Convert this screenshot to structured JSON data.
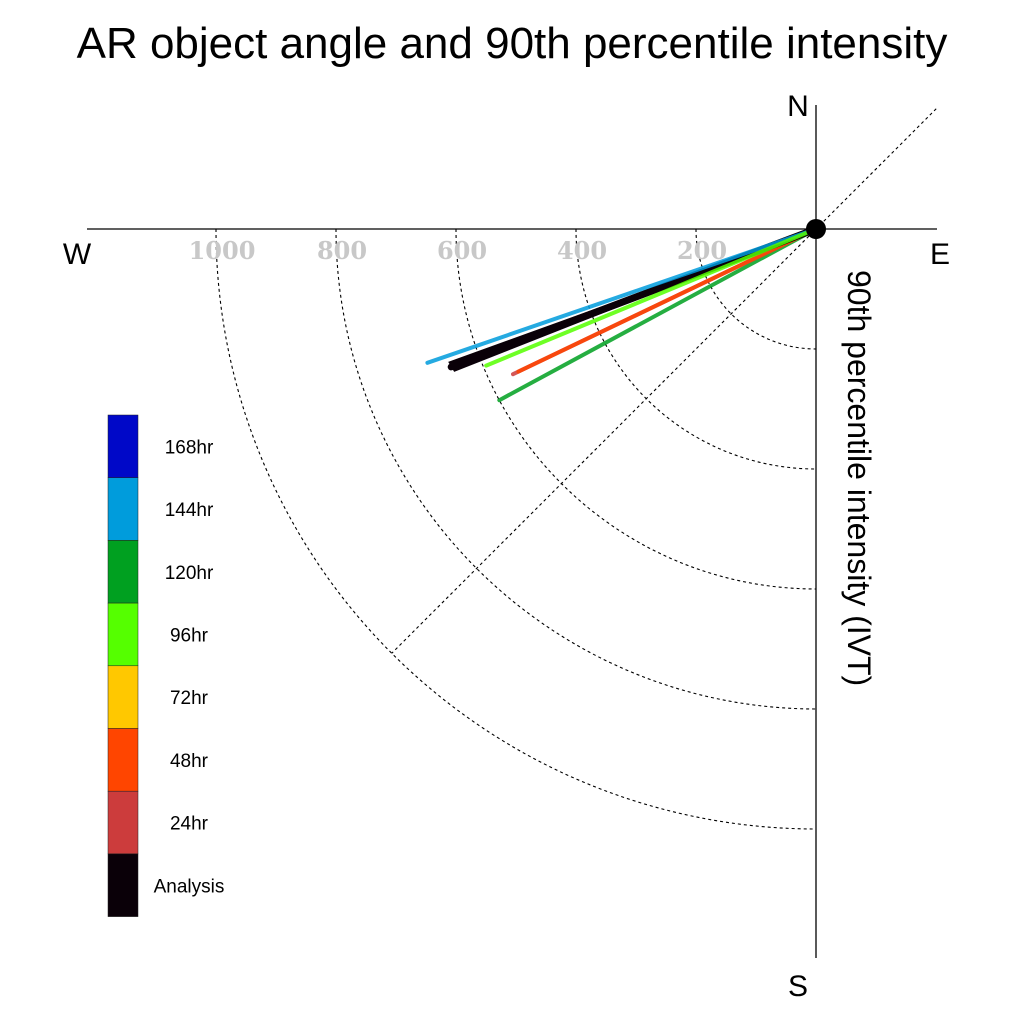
{
  "chart_data": {
    "type": "polar-vector",
    "title": "AR object angle and 90th percentile intensity",
    "radial_axis_label": "90th percentile intensity (IVT)",
    "compass": {
      "north": "N",
      "east": "E",
      "south": "S",
      "west": "W"
    },
    "rings": [
      200,
      400,
      600,
      800,
      1000
    ],
    "ring_labels": [
      "200",
      "400",
      "600",
      "800",
      "1000"
    ],
    "r_max": 1200,
    "series": [
      {
        "name": "120hr",
        "angle_deg": 208.4,
        "intensity": 600,
        "color": "#00a020"
      },
      {
        "name": "24hr",
        "angle_deg": 205.6,
        "intensity": 560,
        "color": "#cc3c3c"
      },
      {
        "name": "48hr",
        "angle_deg": 205.6,
        "intensity": 550,
        "color": "#ff4500"
      },
      {
        "name": "Analysis",
        "angle_deg": 200.7,
        "intensity": 650,
        "color": "#0a0008"
      },
      {
        "name": "144hr",
        "angle_deg": 199.0,
        "intensity": 685,
        "color": "#009cdc"
      },
      {
        "name": "96hr",
        "angle_deg": 202.5,
        "intensity": 595,
        "color": "#55ff00"
      }
    ],
    "legend": [
      {
        "label": "168hr",
        "color": "#0008c8"
      },
      {
        "label": "144hr",
        "color": "#009cdc"
      },
      {
        "label": "120hr",
        "color": "#00a020"
      },
      {
        "label": "96hr",
        "color": "#55ff00"
      },
      {
        "label": "72hr",
        "color": "#ffc800"
      },
      {
        "label": "48hr",
        "color": "#ff4500"
      },
      {
        "label": "24hr",
        "color": "#cc3c3c"
      },
      {
        "label": "Analysis",
        "color": "#0a0008"
      }
    ],
    "legend_placement": "left"
  }
}
